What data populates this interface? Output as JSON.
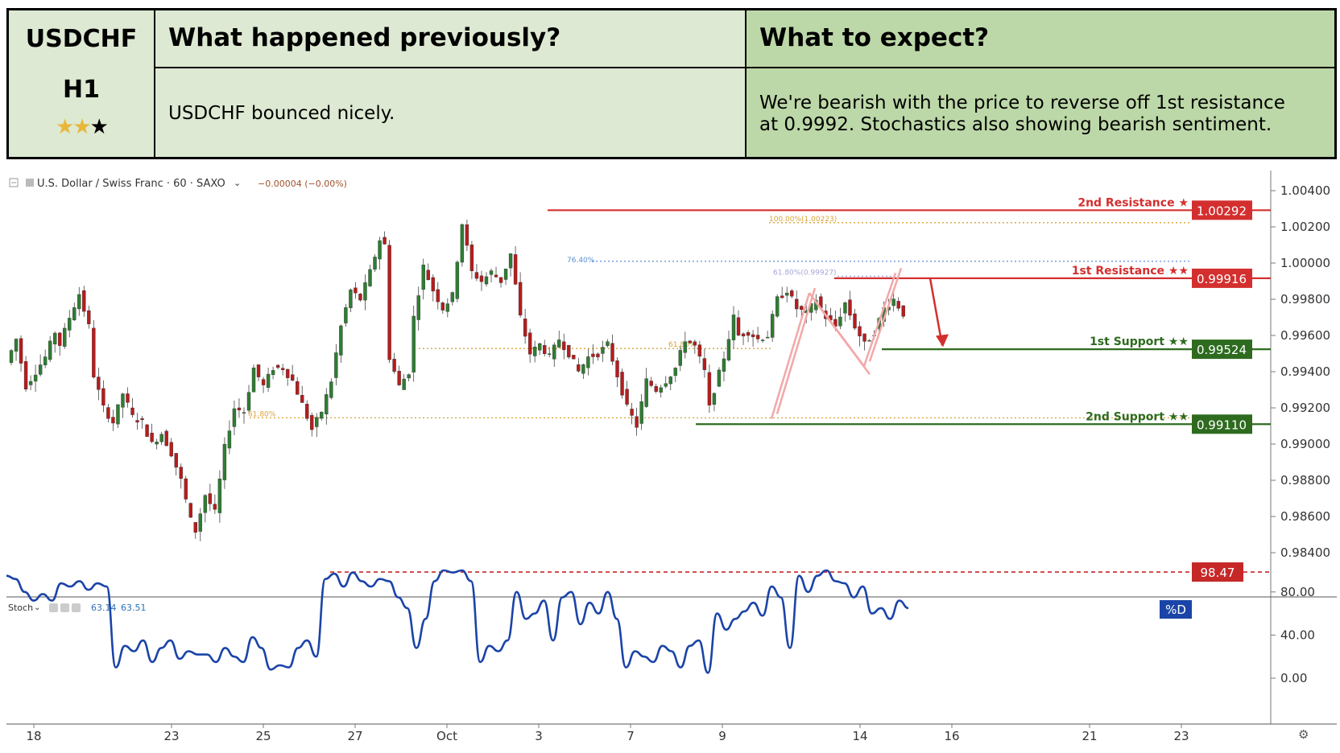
{
  "header": {
    "symbol": "USDCHF",
    "timeframe": "H1",
    "rating_stars": 3,
    "rating_filled": 2,
    "prev_title": "What happened previously?",
    "prev_text": "USDCHF bounced nicely.",
    "expect_title": "What to expect?",
    "expect_text_line1": "We're bearish with the price to reverse off 1st resistance",
    "expect_text_line2": "at 0.9992. Stochastics also showing bearish sentiment."
  },
  "chart_title": {
    "instrument": "U.S. Dollar / Swiss Franc · 60 · SAXO",
    "change": "−0.00004 (−0.00%)"
  },
  "chart_data": [
    {
      "type": "candlestick",
      "ylim": [
        0.9834,
        1.0046
      ],
      "y_ticks": [
        "1.00400",
        "1.00200",
        "1.00000",
        "0.99800",
        "0.99600",
        "0.99400",
        "0.99200",
        "0.99000",
        "0.98800",
        "0.98600",
        "0.98400"
      ],
      "x_ticks": [
        "18",
        "23",
        "25",
        "27",
        "Oct",
        "3",
        "7",
        "9",
        "14",
        "16",
        "21",
        "23"
      ],
      "price_path": [
        [
          0,
          0.9945
        ],
        [
          2,
          0.9958
        ],
        [
          4,
          0.9932
        ],
        [
          6,
          0.994
        ],
        [
          8,
          0.9948
        ],
        [
          10,
          0.9962
        ],
        [
          11,
          0.9955
        ],
        [
          13,
          0.997
        ],
        [
          15,
          0.9983
        ],
        [
          17,
          0.9965
        ],
        [
          18,
          0.9938
        ],
        [
          20,
          0.992
        ],
        [
          22,
          0.9912
        ],
        [
          24,
          0.9928
        ],
        [
          26,
          0.9915
        ],
        [
          28,
          0.9912
        ],
        [
          30,
          0.99
        ],
        [
          32,
          0.9906
        ],
        [
          34,
          0.9895
        ],
        [
          36,
          0.988
        ],
        [
          38,
          0.9858
        ],
        [
          39,
          0.9852
        ],
        [
          41,
          0.9872
        ],
        [
          43,
          0.9862
        ],
        [
          45,
          0.9898
        ],
        [
          47,
          0.992
        ],
        [
          49,
          0.9918
        ],
        [
          51,
          0.9942
        ],
        [
          53,
          0.9932
        ],
        [
          55,
          0.9942
        ],
        [
          57,
          0.9942
        ],
        [
          59,
          0.9935
        ],
        [
          61,
          0.9922
        ],
        [
          63,
          0.9908
        ],
        [
          65,
          0.9918
        ],
        [
          67,
          0.9935
        ],
        [
          69,
          0.9965
        ],
        [
          71,
          0.9985
        ],
        [
          73,
          0.998
        ],
        [
          75,
          0.9995
        ],
        [
          77,
          1.0013
        ],
        [
          78,
          1.001
        ],
        [
          79,
          0.9948
        ],
        [
          80,
          0.994
        ],
        [
          81,
          0.9932
        ],
        [
          83,
          0.994
        ],
        [
          84,
          0.997
        ],
        [
          86,
          0.9998
        ],
        [
          88,
          0.9985
        ],
        [
          90,
          0.9975
        ],
        [
          92,
          0.9982
        ],
        [
          94,
          1.0022
        ],
        [
          96,
          0.9995
        ],
        [
          98,
          0.999
        ],
        [
          100,
          0.9995
        ],
        [
          102,
          0.999
        ],
        [
          104,
          1.0005
        ],
        [
          106,
          0.997
        ],
        [
          108,
          0.995
        ],
        [
          110,
          0.9955
        ],
        [
          112,
          0.9948
        ],
        [
          114,
          0.9958
        ],
        [
          116,
          0.995
        ],
        [
          118,
          0.994
        ],
        [
          120,
          0.9948
        ],
        [
          122,
          0.995
        ],
        [
          124,
          0.9955
        ],
        [
          126,
          0.9938
        ],
        [
          128,
          0.992
        ],
        [
          130,
          0.991
        ],
        [
          132,
          0.9935
        ],
        [
          134,
          0.993
        ],
        [
          136,
          0.9935
        ],
        [
          138,
          0.9942
        ],
        [
          140,
          0.9958
        ],
        [
          142,
          0.9954
        ],
        [
          144,
          0.994
        ],
        [
          145,
          0.992
        ],
        [
          146,
          0.993
        ],
        [
          148,
          0.9948
        ],
        [
          150,
          0.997
        ],
        [
          151,
          0.996
        ],
        [
          153,
          0.9962
        ],
        [
          155,
          0.9958
        ],
        [
          157,
          0.996
        ],
        [
          159,
          0.998
        ],
        [
          161,
          0.9985
        ],
        [
          163,
          0.9975
        ],
        [
          165,
          0.9972
        ],
        [
          167,
          0.998
        ],
        [
          169,
          0.997
        ],
        [
          171,
          0.9965
        ],
        [
          173,
          0.9978
        ],
        [
          175,
          0.9965
        ],
        [
          177,
          0.9955
        ],
        [
          179,
          0.9962
        ],
        [
          181,
          0.9975
        ],
        [
          183,
          0.998
        ],
        [
          185,
          0.9972
        ]
      ],
      "levels": [
        {
          "label": "2nd Resistance ★",
          "value": 1.00292,
          "value_text": "1.00292",
          "color": "#d32f2f"
        },
        {
          "label": "1st Resistance ★★",
          "value": 0.99916,
          "value_text": "0.99916",
          "color": "#d32f2f"
        },
        {
          "label": "1st Support ★★",
          "value": 0.99524,
          "value_text": "0.99524",
          "color": "#2e6b1f"
        },
        {
          "label": "2nd Support ★★",
          "value": 0.9911,
          "value_text": "0.99110",
          "color": "#2e6b1f"
        }
      ],
      "fib_levels": [
        {
          "label": "100.00%(1.00223)",
          "value": 1.00223,
          "color": "#d9a336"
        },
        {
          "label": "76.40%",
          "value": 1.0001,
          "color": "#5b8fd6"
        },
        {
          "label": "61.80%(0.99927)",
          "value": 0.99927,
          "color": "#a6a6d9"
        },
        {
          "label": "61.80%",
          "value": 0.99528,
          "color": "#d9a336"
        },
        {
          "label": "61.80%",
          "value": 0.99145,
          "color": "#d9a336"
        }
      ]
    },
    {
      "type": "line",
      "name": "Stoch",
      "values_text": [
        "63.14",
        "63.51"
      ],
      "ylim": [
        0,
        100
      ],
      "y_ticks": [
        "80.00",
        "40.00",
        "0.00"
      ],
      "level": {
        "value": 98.47,
        "value_text": "98.47",
        "color": "#c62828"
      },
      "legend_tag": "%D",
      "series": [
        {
          "name": "%D",
          "color": "#1b44a8",
          "values": [
            95,
            92,
            80,
            72,
            78,
            72,
            88,
            85,
            90,
            82,
            88,
            85,
            10,
            30,
            25,
            35,
            15,
            28,
            35,
            18,
            25,
            22,
            22,
            15,
            28,
            20,
            15,
            38,
            28,
            8,
            12,
            10,
            28,
            35,
            20,
            92,
            97,
            85,
            98,
            90,
            85,
            92,
            90,
            75,
            65,
            28,
            55,
            90,
            100,
            98,
            100,
            90,
            15,
            30,
            25,
            35,
            80,
            55,
            60,
            72,
            35,
            75,
            80,
            50,
            70,
            60,
            80,
            55,
            10,
            25,
            20,
            15,
            30,
            25,
            10,
            30,
            35,
            5,
            60,
            45,
            55,
            62,
            70,
            58,
            85,
            75,
            28,
            95,
            80,
            95,
            100,
            90,
            88,
            75,
            85,
            60,
            65,
            55,
            72,
            65
          ]
        }
      ]
    }
  ],
  "colors": {
    "bull": "#2e7d32",
    "bear": "#b71c1c",
    "arrow": "#d32f2f",
    "zigzag": "#f2a8a8",
    "stoch_line": "#1b44a8",
    "pd_tag": "#1b44a8",
    "grid": "#787878"
  },
  "icons": [
    "collapse-icon",
    "settings-gear-icon",
    "visibility-eye-icon",
    "settings-icon",
    "close-icon",
    "chevron-down-icon"
  ]
}
